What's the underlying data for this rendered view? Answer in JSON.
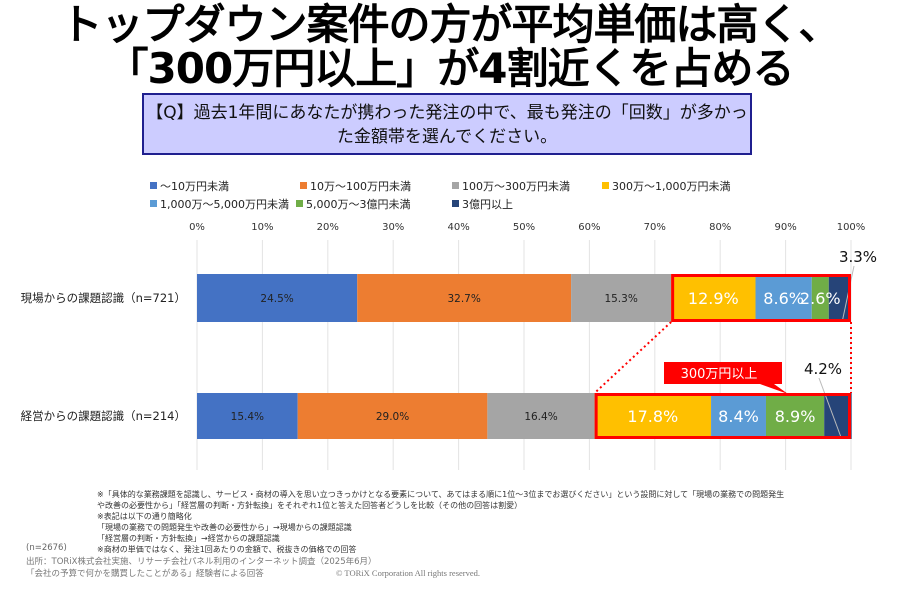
{
  "header": {
    "title_line1": "トップダウン案件の方が平均単価は高く、",
    "title_line2": "「300万円以上」が4割近くを占める",
    "question": "【Q】過去1年間にあなたが携わった発注の中で、最も発注の「回数」が多かった金額帯を選んでください。"
  },
  "chart_data": {
    "type": "bar",
    "orientation": "horizontal",
    "stacked": true,
    "title": "トップダウン案件の方が平均単価は高く、「300万円以上」が4割近くを占める",
    "xlabel": "",
    "ylabel": "",
    "xlim": [
      0,
      100
    ],
    "x_ticks": [
      "0%",
      "10%",
      "20%",
      "30%",
      "40%",
      "50%",
      "60%",
      "70%",
      "80%",
      "90%",
      "100%"
    ],
    "grid": true,
    "legend_position": "top",
    "categories": [
      "現場からの課題認識（n=721）",
      "経営からの課題認識（n=214）"
    ],
    "series": [
      {
        "name": "～10万円未満",
        "color": "#4472c4",
        "values": [
          24.5,
          15.4
        ]
      },
      {
        "name": "10万～100万円未満",
        "color": "#ed7d31",
        "values": [
          32.7,
          29.0
        ]
      },
      {
        "name": "100万～300万円未満",
        "color": "#a5a5a5",
        "values": [
          15.3,
          16.4
        ]
      },
      {
        "name": "300万～1,000万円未満",
        "color": "#ffc000",
        "values": [
          12.9,
          17.8
        ]
      },
      {
        "name": "1,000万～5,000万円未満",
        "color": "#5b9bd5",
        "values": [
          8.6,
          8.4
        ]
      },
      {
        "name": "5,000万～3億円未満",
        "color": "#70ad47",
        "values": [
          2.6,
          8.9
        ]
      },
      {
        "name": "3億円以上",
        "color": "#264478",
        "values": [
          3.3,
          4.2
        ]
      }
    ],
    "data_labels": [
      [
        "24.5%",
        "32.7%",
        "15.3%",
        "12.9%",
        "8.6%",
        "2.6%",
        "3.3%"
      ],
      [
        "15.4%",
        "29.0%",
        "16.4%",
        "17.8%",
        "8.4%",
        "8.9%",
        "4.2%"
      ]
    ],
    "annotation": {
      "label": "300万円以上",
      "color": "#ff0000",
      "highlight_from_series": 3
    }
  },
  "footer": {
    "notes": [
      "※「具体的な業務課題を認識し、サービス・商材の導入を思い立つきっかけとなる要素について、あてはまる順に1位～3位までお選びください」という設問に対して「現場の業務での問題発生",
      "や改善の必要性から」「経営層の判断・方針転換」をそれぞれ1位と答えた回答者どうしを比較（その他の回答は割愛）",
      "※表記は以下の通り簡略化",
      "「現場の業務での問題発生や改善の必要性から」→現場からの課題認識",
      "「経営層の判断・方針転換」→経営からの課題認識",
      "※商材の単価ではなく、発注1回あたりの金額で、税抜きの価格での回答"
    ],
    "n_total": "(n=2676)",
    "source_line1": "出所：TORiX株式会社実施、リサーチ会社パネル利用のインターネット調査（2025年6月）",
    "source_line2": "「会社の予算で何かを購買したことがある」経験者による回答",
    "copyright": "© TORiX Corporation All rights reserved."
  }
}
